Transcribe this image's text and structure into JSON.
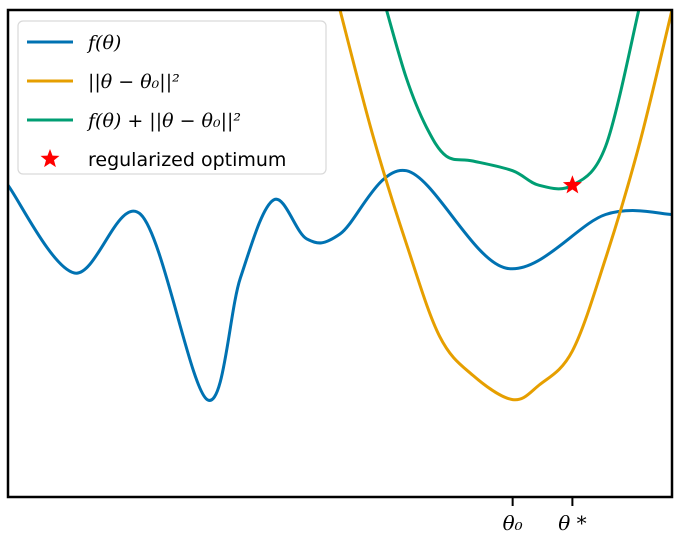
{
  "chart_data": {
    "type": "line",
    "title": "",
    "xlabel": "",
    "ylabel": "",
    "grid": false,
    "legend_placement": "top-left",
    "colors": {
      "f": "#0072b2",
      "penalty": "#e69f00",
      "regularized": "#009e73",
      "optimum": "#ff0000",
      "axes": "#000000"
    },
    "series": [
      {
        "key": "f",
        "name": "f(θ)",
        "type": "line",
        "x": [
          0.0,
          0.1,
          0.2,
          0.3,
          0.35,
          0.4,
          0.45,
          0.5,
          0.6,
          0.75,
          0.9,
          1.0
        ],
        "y": [
          0.64,
          0.46,
          0.58,
          0.2,
          0.45,
          0.61,
          0.53,
          0.54,
          0.67,
          0.47,
          0.58,
          0.58
        ]
      },
      {
        "key": "penalty",
        "name": "||θ − θ₀||²",
        "type": "line",
        "x": [
          0.5,
          0.55,
          0.6,
          0.65,
          0.7,
          0.76,
          0.8,
          0.85,
          0.9,
          0.95,
          1.0
        ],
        "y": [
          1.0,
          0.74,
          0.52,
          0.33,
          0.25,
          0.2,
          0.23,
          0.3,
          0.49,
          0.72,
          1.0
        ]
      },
      {
        "key": "regularized",
        "name": "f(θ) + ||θ − θ₀||²",
        "type": "line",
        "x": [
          0.57,
          0.6,
          0.63,
          0.66,
          0.7,
          0.76,
          0.8,
          0.85,
          0.9,
          0.95
        ],
        "y": [
          1.0,
          0.86,
          0.76,
          0.7,
          0.69,
          0.67,
          0.64,
          0.64,
          0.72,
          1.0
        ]
      }
    ],
    "points": [
      {
        "key": "optimum",
        "name": "regularized optimum",
        "x": 0.85,
        "y": 0.64
      }
    ],
    "xticks": [
      {
        "value": 0.76,
        "label": "θ₀"
      },
      {
        "value": 0.85,
        "label": "θ *"
      }
    ],
    "xlim": [
      0.0,
      1.0
    ],
    "ylim": [
      0.0,
      1.0
    ]
  }
}
